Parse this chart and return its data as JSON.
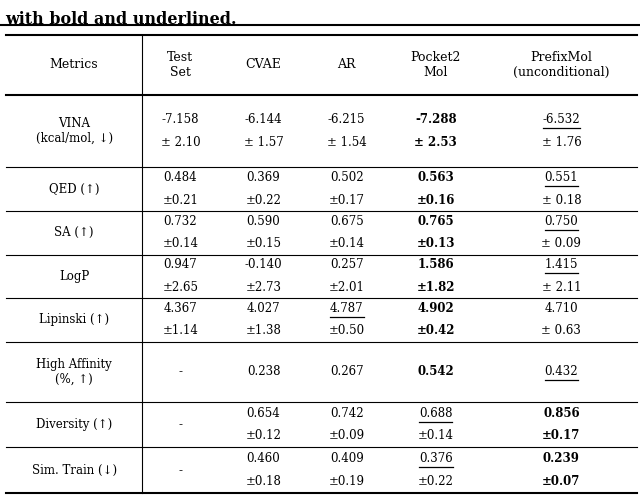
{
  "title_line": "with bold and underlined.",
  "col_headers": [
    "Metrics",
    "Test\nSet",
    "CVAE",
    "AR",
    "Pocket2\nMol",
    "PrefixMol\n(unconditional)"
  ],
  "rows": [
    {
      "metric": "VINA\n(kcal/mol, ↓)",
      "main_vals": [
        "-7.158",
        "-6.144",
        "-6.215",
        "-7.288",
        "-6.532"
      ],
      "std_vals": [
        "± 2.10",
        "± 1.57",
        "± 1.54",
        "± 2.53",
        "± 1.76"
      ],
      "bold": [
        false,
        false,
        false,
        true,
        false
      ],
      "underline": [
        false,
        false,
        false,
        false,
        true
      ]
    },
    {
      "metric": "QED (↑)",
      "main_vals": [
        "0.484",
        "0.369",
        "0.502",
        "0.563",
        "0.551"
      ],
      "std_vals": [
        "±0.21",
        "±0.22",
        "±0.17",
        "±0.16",
        "± 0.18"
      ],
      "bold": [
        false,
        false,
        false,
        true,
        false
      ],
      "underline": [
        false,
        false,
        false,
        false,
        true
      ]
    },
    {
      "metric": "SA (↑)",
      "main_vals": [
        "0.732",
        "0.590",
        "0.675",
        "0.765",
        "0.750"
      ],
      "std_vals": [
        "±0.14",
        "±0.15",
        "±0.14",
        "±0.13",
        "± 0.09"
      ],
      "bold": [
        false,
        false,
        false,
        true,
        false
      ],
      "underline": [
        false,
        false,
        false,
        false,
        true
      ]
    },
    {
      "metric": "LogP",
      "main_vals": [
        "0.947",
        "-0.140",
        "0.257",
        "1.586",
        "1.415"
      ],
      "std_vals": [
        "±2.65",
        "±2.73",
        "±2.01",
        "±1.82",
        "± 2.11"
      ],
      "bold": [
        false,
        false,
        false,
        true,
        false
      ],
      "underline": [
        false,
        false,
        false,
        false,
        true
      ]
    },
    {
      "metric": "Lipinski (↑)",
      "main_vals": [
        "4.367",
        "4.027",
        "4.787",
        "4.902",
        "4.710"
      ],
      "std_vals": [
        "±1.14",
        "±1.38",
        "±0.50",
        "±0.42",
        "± 0.63"
      ],
      "bold": [
        false,
        false,
        false,
        true,
        false
      ],
      "underline": [
        false,
        false,
        true,
        false,
        false
      ]
    },
    {
      "metric": "High Affinity\n(%, ↑)",
      "main_vals": [
        "-",
        "0.238",
        "0.267",
        "0.542",
        "0.432"
      ],
      "std_vals": [
        "",
        "",
        "",
        "",
        ""
      ],
      "bold": [
        false,
        false,
        false,
        true,
        false
      ],
      "underline": [
        false,
        false,
        false,
        false,
        true
      ]
    },
    {
      "metric": "Diversity (↑)",
      "main_vals": [
        "-",
        "0.654",
        "0.742",
        "0.688",
        "0.856"
      ],
      "std_vals": [
        "",
        "±0.12",
        "±0.09",
        "±0.14",
        "±0.17"
      ],
      "bold": [
        false,
        false,
        false,
        false,
        true
      ],
      "underline": [
        false,
        false,
        false,
        true,
        false
      ]
    },
    {
      "metric": "Sim. Train (↓)",
      "main_vals": [
        "-",
        "0.460",
        "0.409",
        "0.376",
        "0.239"
      ],
      "std_vals": [
        "",
        "±0.18",
        "±0.19",
        "±0.22",
        "±0.07"
      ],
      "bold": [
        false,
        false,
        false,
        false,
        true
      ],
      "underline": [
        false,
        false,
        false,
        true,
        false
      ]
    }
  ],
  "col_props": [
    0.175,
    0.1,
    0.115,
    0.1,
    0.13,
    0.195
  ],
  "row_rel": [
    1.45,
    1.75,
    1.05,
    1.05,
    1.05,
    1.05,
    1.45,
    1.1,
    1.1
  ],
  "tl": 0.01,
  "tr": 0.995,
  "tt": 0.93,
  "tb": 0.008,
  "figsize": [
    6.4,
    4.97
  ],
  "dpi": 100,
  "font_size": 8.5,
  "header_font_size": 9.0,
  "title_font_size": 11.5
}
